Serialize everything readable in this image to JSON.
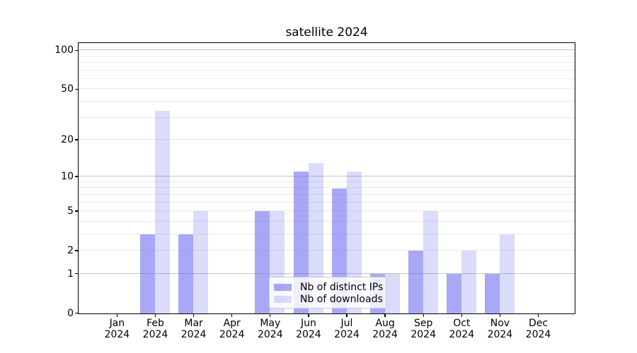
{
  "chart_data": {
    "type": "bar",
    "title": "satellite 2024",
    "x_year": "2024",
    "categories": [
      "Jan",
      "Feb",
      "Mar",
      "Apr",
      "May",
      "Jun",
      "Jul",
      "Aug",
      "Sep",
      "Oct",
      "Nov",
      "Dec"
    ],
    "series": [
      {
        "name": "Nb of distinct IPs",
        "color": "rgba(110,110,240,0.6)",
        "values": [
          0,
          3,
          3,
          0,
          5,
          11,
          8,
          1,
          2,
          1,
          1,
          0
        ]
      },
      {
        "name": "Nb of downloads",
        "color": "rgba(110,110,240,0.25)",
        "values": [
          0,
          34,
          5,
          0,
          5,
          13,
          11,
          1,
          5,
          2,
          3,
          0
        ]
      }
    ],
    "y_scale": "log10(value+1)",
    "ylim": [
      0,
      113
    ],
    "y_ticks": [
      0,
      1,
      2,
      5,
      10,
      20,
      50,
      100
    ],
    "y_gridlines_emphasized": [
      1,
      10,
      100
    ],
    "y_gridlines_minor": [
      2,
      3,
      4,
      5,
      6,
      7,
      8,
      9,
      20,
      30,
      40,
      50,
      60,
      70,
      80,
      90
    ],
    "legend": {
      "location": "lower center",
      "frame": true
    },
    "colors": {
      "grid_minor": "#eaeaea",
      "grid_emphasized": "#c2c2c2",
      "spine": "#000000"
    }
  }
}
